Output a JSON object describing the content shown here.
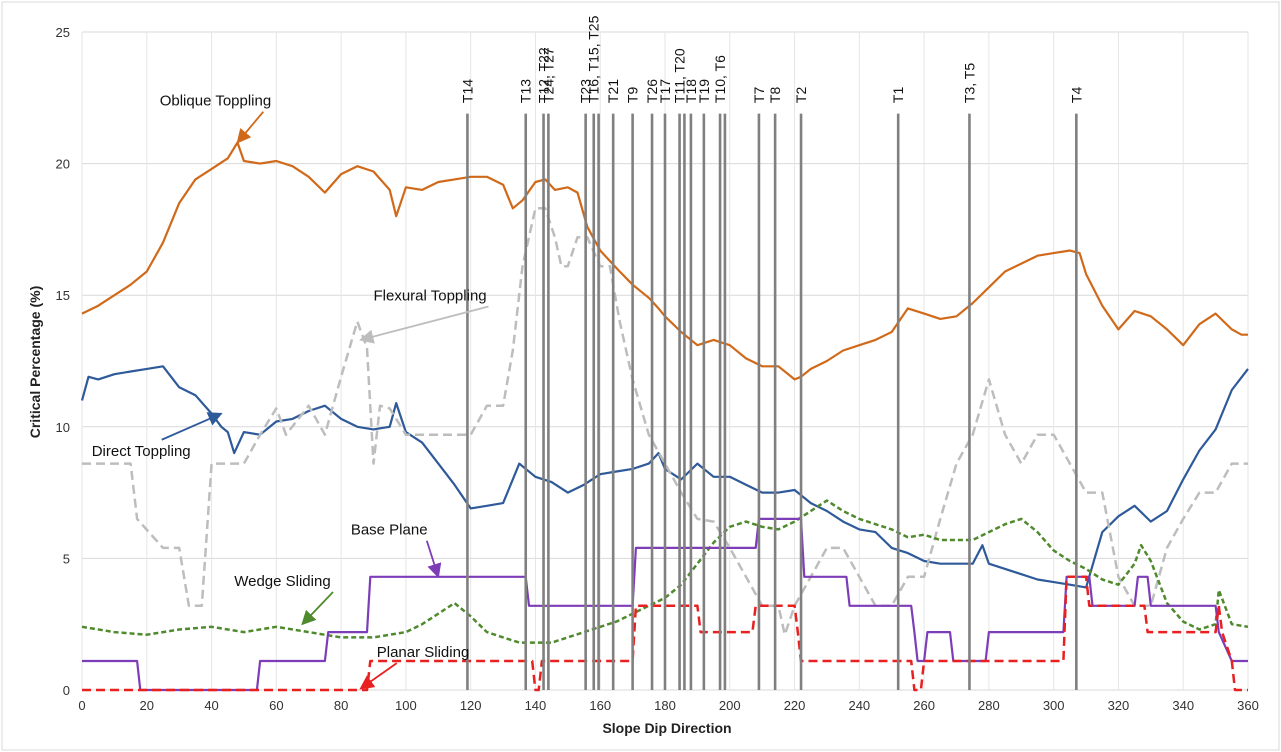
{
  "chart_data": {
    "type": "line",
    "xlabel": "Slope Dip Direction",
    "ylabel": "Critical Percentage (%)",
    "xlim": [
      0,
      360
    ],
    "ylim": [
      0,
      25
    ],
    "xticks": [
      0,
      20,
      40,
      60,
      80,
      100,
      120,
      140,
      160,
      180,
      200,
      220,
      240,
      260,
      280,
      300,
      320,
      340,
      360
    ],
    "yticks": [
      0,
      5,
      10,
      15,
      20,
      25
    ],
    "grid": true,
    "series": [
      {
        "name": "Oblique Toppling",
        "color": "#d06a1a",
        "style": "solid",
        "x": [
          0,
          5,
          10,
          15,
          20,
          25,
          30,
          35,
          40,
          45,
          48,
          50,
          55,
          60,
          65,
          70,
          75,
          80,
          85,
          90,
          95,
          97,
          100,
          105,
          110,
          115,
          120,
          125,
          130,
          133,
          136,
          140,
          143,
          146,
          150,
          153,
          156,
          160,
          163,
          166,
          170,
          175,
          178,
          180,
          185,
          190,
          195,
          200,
          205,
          210,
          215,
          220,
          222,
          225,
          230,
          235,
          240,
          245,
          250,
          255,
          260,
          265,
          270,
          275,
          280,
          285,
          290,
          295,
          300,
          305,
          308,
          310,
          315,
          320,
          325,
          330,
          335,
          340,
          345,
          350,
          355,
          358,
          360
        ],
        "values": [
          14.3,
          14.6,
          15.0,
          15.4,
          15.9,
          17.0,
          18.5,
          19.4,
          19.8,
          20.2,
          20.8,
          20.1,
          20.0,
          20.1,
          19.9,
          19.5,
          18.9,
          19.6,
          19.9,
          19.7,
          19.0,
          18.0,
          19.1,
          19.0,
          19.3,
          19.4,
          19.5,
          19.5,
          19.2,
          18.3,
          18.6,
          19.3,
          19.4,
          19.0,
          19.1,
          18.9,
          17.6,
          16.7,
          16.3,
          15.9,
          15.4,
          14.9,
          14.5,
          14.2,
          13.6,
          13.1,
          13.3,
          13.1,
          12.6,
          12.3,
          12.3,
          11.8,
          11.9,
          12.2,
          12.5,
          12.9,
          13.1,
          13.3,
          13.6,
          14.5,
          14.3,
          14.1,
          14.2,
          14.7,
          15.3,
          15.9,
          16.2,
          16.5,
          16.6,
          16.7,
          16.6,
          15.8,
          14.6,
          13.7,
          14.4,
          14.2,
          13.7,
          13.1,
          13.9,
          14.3,
          13.7,
          13.5,
          13.5
        ]
      },
      {
        "name": "Direct Toppling",
        "color": "#2e5a9a",
        "style": "solid",
        "x": [
          0,
          2,
          5,
          10,
          15,
          20,
          25,
          30,
          35,
          40,
          43,
          45,
          47,
          50,
          55,
          60,
          65,
          70,
          75,
          80,
          85,
          90,
          95,
          97,
          100,
          105,
          110,
          115,
          120,
          125,
          130,
          135,
          140,
          145,
          150,
          155,
          160,
          165,
          170,
          175,
          178,
          180,
          185,
          190,
          195,
          200,
          205,
          210,
          215,
          220,
          225,
          230,
          235,
          240,
          245,
          250,
          255,
          260,
          265,
          270,
          275,
          278,
          280,
          285,
          290,
          295,
          300,
          305,
          310,
          315,
          320,
          325,
          330,
          335,
          340,
          345,
          350,
          355,
          360
        ],
        "values": [
          11.0,
          11.9,
          11.8,
          12.0,
          12.1,
          12.2,
          12.3,
          11.5,
          11.2,
          10.5,
          10.0,
          9.8,
          9.0,
          9.8,
          9.7,
          10.2,
          10.3,
          10.6,
          10.8,
          10.3,
          10.0,
          9.9,
          10.0,
          10.9,
          9.8,
          9.4,
          8.6,
          7.8,
          6.9,
          7.0,
          7.1,
          8.6,
          8.1,
          7.9,
          7.5,
          7.8,
          8.2,
          8.3,
          8.4,
          8.6,
          9.0,
          8.4,
          8.0,
          8.6,
          8.1,
          8.1,
          7.8,
          7.5,
          7.5,
          7.6,
          7.1,
          6.8,
          6.4,
          6.1,
          6.0,
          5.4,
          5.2,
          4.9,
          4.8,
          4.8,
          4.8,
          5.5,
          4.8,
          4.6,
          4.4,
          4.2,
          4.1,
          4.0,
          3.9,
          6.0,
          6.6,
          7.0,
          6.4,
          6.8,
          8.0,
          9.1,
          9.9,
          11.4,
          12.2
        ]
      },
      {
        "name": "Flexural Toppling",
        "color": "#bdbdbd",
        "style": "dashed",
        "x": [
          0,
          15,
          17,
          25,
          30,
          33,
          37,
          40,
          45,
          50,
          55,
          60,
          63,
          70,
          75,
          80,
          85,
          88,
          90,
          92,
          95,
          100,
          105,
          110,
          115,
          120,
          125,
          130,
          133,
          136,
          140,
          143,
          146,
          148,
          150,
          153,
          156,
          160,
          163,
          166,
          170,
          175,
          180,
          185,
          190,
          195,
          200,
          205,
          210,
          215,
          217,
          220,
          225,
          230,
          235,
          240,
          245,
          250,
          255,
          260,
          265,
          270,
          275,
          280,
          285,
          290,
          295,
          300,
          305,
          310,
          315,
          320,
          325,
          330,
          335,
          340,
          345,
          350,
          355,
          360
        ],
        "values": [
          8.6,
          8.6,
          6.5,
          5.4,
          5.4,
          3.2,
          3.2,
          8.6,
          8.6,
          8.6,
          9.7,
          10.7,
          9.7,
          10.8,
          9.7,
          11.9,
          14.0,
          13.0,
          8.6,
          10.8,
          10.7,
          9.7,
          9.7,
          9.7,
          9.7,
          9.7,
          10.8,
          10.8,
          12.9,
          16.1,
          18.3,
          18.3,
          17.2,
          16.1,
          16.1,
          17.2,
          17.2,
          16.1,
          16.1,
          14.0,
          11.8,
          9.7,
          8.6,
          7.5,
          6.5,
          6.4,
          5.4,
          4.3,
          3.2,
          3.2,
          2.1,
          3.2,
          4.3,
          5.4,
          5.4,
          4.3,
          3.2,
          3.2,
          4.3,
          4.3,
          6.5,
          8.6,
          9.7,
          11.8,
          9.7,
          8.6,
          9.7,
          9.7,
          8.6,
          7.5,
          7.5,
          4.3,
          3.2,
          3.2,
          5.4,
          6.5,
          7.5,
          7.5,
          8.6,
          8.6
        ]
      },
      {
        "name": "Wedge Sliding",
        "color": "#4f8a2c",
        "style": "dashed",
        "x": [
          0,
          10,
          20,
          30,
          40,
          50,
          60,
          70,
          80,
          90,
          100,
          105,
          110,
          115,
          120,
          125,
          130,
          135,
          140,
          145,
          150,
          155,
          160,
          165,
          170,
          175,
          180,
          185,
          190,
          195,
          200,
          205,
          210,
          215,
          220,
          225,
          230,
          235,
          240,
          245,
          250,
          255,
          260,
          265,
          270,
          275,
          280,
          285,
          290,
          295,
          300,
          305,
          310,
          315,
          320,
          325,
          327,
          330,
          335,
          340,
          345,
          350,
          351,
          355,
          360
        ],
        "values": [
          2.4,
          2.2,
          2.1,
          2.3,
          2.4,
          2.2,
          2.4,
          2.2,
          2.0,
          2.0,
          2.2,
          2.5,
          2.9,
          3.3,
          2.8,
          2.2,
          2.0,
          1.8,
          1.8,
          1.8,
          2.0,
          2.2,
          2.4,
          2.6,
          2.9,
          3.2,
          3.5,
          4.0,
          4.8,
          5.6,
          6.2,
          6.4,
          6.2,
          6.1,
          6.4,
          6.8,
          7.2,
          6.8,
          6.5,
          6.3,
          6.1,
          5.8,
          5.9,
          5.7,
          5.7,
          5.7,
          6.0,
          6.3,
          6.5,
          6.0,
          5.3,
          4.9,
          4.6,
          4.2,
          4.0,
          4.8,
          5.5,
          4.9,
          3.3,
          2.6,
          2.3,
          2.5,
          3.8,
          2.5,
          2.4
        ]
      },
      {
        "name": "Base Plane",
        "color": "#7e3db8",
        "style": "solid",
        "x": [
          0,
          17,
          18,
          54,
          55,
          75,
          76,
          88,
          89,
          137,
          138,
          170,
          171,
          208,
          209,
          222,
          223,
          236,
          237,
          256,
          257,
          258,
          260,
          261,
          268,
          269,
          279,
          280,
          303,
          304,
          311,
          312,
          325,
          326,
          329,
          330,
          350,
          351,
          355,
          360
        ],
        "values": [
          1.1,
          1.1,
          0.0,
          0.0,
          1.1,
          1.1,
          2.2,
          2.2,
          4.3,
          4.3,
          3.2,
          3.2,
          5.4,
          5.4,
          6.5,
          6.5,
          4.3,
          4.3,
          3.2,
          3.2,
          2.2,
          1.1,
          1.1,
          2.2,
          2.2,
          1.1,
          1.1,
          2.2,
          2.2,
          4.3,
          4.3,
          3.2,
          3.2,
          4.3,
          4.3,
          3.2,
          3.2,
          2.2,
          1.1,
          1.1
        ]
      },
      {
        "name": "Planar Sliding",
        "color": "#e82020",
        "style": "dashed",
        "x": [
          0,
          88,
          89,
          139,
          140,
          141,
          142,
          170,
          171,
          190,
          191,
          207,
          208,
          220,
          221,
          222,
          256,
          257,
          259,
          260,
          303,
          304,
          310,
          311,
          328,
          329,
          350,
          351,
          352,
          355,
          356,
          360
        ],
        "values": [
          0.0,
          0.0,
          1.1,
          1.1,
          0.0,
          0.0,
          1.1,
          1.1,
          3.2,
          3.2,
          2.2,
          2.2,
          3.2,
          3.2,
          2.2,
          1.1,
          1.1,
          0.0,
          0.0,
          1.1,
          1.1,
          4.3,
          4.3,
          3.2,
          3.2,
          2.2,
          2.2,
          3.2,
          2.2,
          1.1,
          0.0,
          0.0
        ]
      }
    ],
    "vertical_markers": [
      {
        "x": 119,
        "label": "T14"
      },
      {
        "x": 137,
        "label": "T13"
      },
      {
        "x": 142.5,
        "label": "T12, T22"
      },
      {
        "x": 144,
        "label": "T24, T27"
      },
      {
        "x": 155.5,
        "label": "T23"
      },
      {
        "x": 158,
        "label": "T16, T15, T25"
      },
      {
        "x": 159.5,
        "label": ""
      },
      {
        "x": 164,
        "label": "T21"
      },
      {
        "x": 170,
        "label": "T9"
      },
      {
        "x": 176,
        "label": "T26"
      },
      {
        "x": 180,
        "label": "T17"
      },
      {
        "x": 184.5,
        "label": "T11, T20"
      },
      {
        "x": 186,
        "label": ""
      },
      {
        "x": 188,
        "label": "T18"
      },
      {
        "x": 192,
        "label": "T19"
      },
      {
        "x": 197,
        "label": "T10, T6"
      },
      {
        "x": 198.5,
        "label": ""
      },
      {
        "x": 209,
        "label": "T7"
      },
      {
        "x": 214,
        "label": "T8"
      },
      {
        "x": 222,
        "label": "T2"
      },
      {
        "x": 252,
        "label": "T1"
      },
      {
        "x": 274,
        "label": "T3, T5"
      },
      {
        "x": 307,
        "label": "T4"
      }
    ],
    "annotations": [
      {
        "text": "Oblique Toppling",
        "tx": 24,
        "ty": 22.2,
        "ax": 48,
        "ay": 20.8
      },
      {
        "text": "Flexural Toppling",
        "tx": 90,
        "ty": 14.8,
        "ax": 86,
        "ay": 13.3
      },
      {
        "text": "Direct Toppling",
        "tx": 3,
        "ty": 8.9,
        "ax": 43,
        "ay": 10.5
      },
      {
        "text": "Base Plane",
        "tx": 83,
        "ty": 5.9,
        "ax": 110,
        "ay": 4.3
      },
      {
        "text": "Wedge Sliding",
        "tx": 47,
        "ty": 3.95,
        "ax": 68,
        "ay": 2.5
      },
      {
        "text": "Planar Sliding",
        "tx": 91,
        "ty": 1.25,
        "ax": 86,
        "ay": 0.05
      }
    ]
  }
}
